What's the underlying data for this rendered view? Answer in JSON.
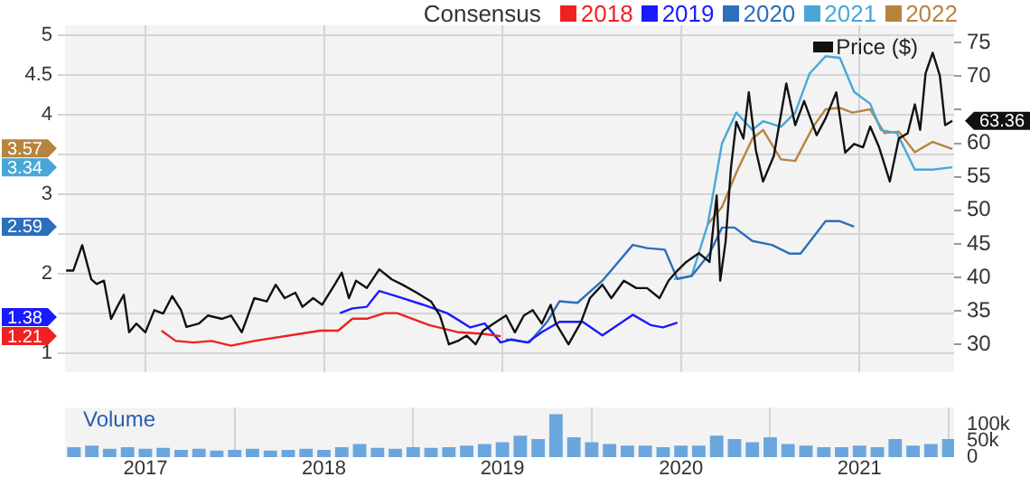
{
  "chart_data": [
    {
      "type": "line",
      "legend": "top right",
      "legend_title": "Consensus",
      "grid": true,
      "tick_labels": "y",
      "xlim": [
        2016.55,
        2021.53
      ],
      "xticks": [
        2017,
        2018,
        2019,
        2020,
        2021
      ],
      "ylim": [
        0.76,
        5.13
      ],
      "yticks": [
        1,
        {
          "value": 1.5,
          "label": null
        },
        2,
        {
          "value": 2.5,
          "label": null
        },
        3,
        {
          "value": 3.5,
          "label": null
        },
        4,
        4.5,
        5
      ],
      "annotations": [
        "1.21",
        "1.38",
        "2.59",
        "3.34",
        "3.57"
      ],
      "y2lim": [
        25.9,
        77.6
      ],
      "y2ticks": [
        30,
        35,
        40,
        45,
        50,
        55,
        60,
        {
          "value": 65,
          "label": null
        },
        70,
        75
      ],
      "series": [
        {
          "name": "2018",
          "color": "#ee2222",
          "x": [
            2017.09,
            2017.17,
            2017.27,
            2017.37,
            2017.48,
            2017.61,
            2017.81,
            2017.98,
            2018.08,
            2018.16,
            2018.24,
            2018.34,
            2018.41,
            2018.59,
            2018.75,
            2018.89,
            2018.99
          ],
          "values": [
            1.28,
            1.15,
            1.13,
            1.15,
            1.09,
            1.15,
            1.22,
            1.28,
            1.28,
            1.43,
            1.43,
            1.5,
            1.5,
            1.35,
            1.26,
            1.24,
            1.21
          ]
        },
        {
          "name": "2019",
          "color": "#1a1aff",
          "x": [
            2018.09,
            2018.16,
            2018.24,
            2018.31,
            2018.41,
            2018.55,
            2018.69,
            2018.82,
            2018.9,
            2018.99,
            2019.05,
            2019.14,
            2019.22,
            2019.32,
            2019.45,
            2019.56,
            2019.73,
            2019.83,
            2019.9,
            2019.98
          ],
          "values": [
            1.5,
            1.56,
            1.58,
            1.78,
            1.71,
            1.61,
            1.5,
            1.32,
            1.37,
            1.13,
            1.17,
            1.13,
            1.26,
            1.39,
            1.39,
            1.22,
            1.48,
            1.35,
            1.32,
            1.38
          ]
        },
        {
          "name": "2020",
          "color": "#2c6fbb",
          "x": [
            2019.02,
            2019.15,
            2019.25,
            2019.32,
            2019.42,
            2019.56,
            2019.73,
            2019.81,
            2019.91,
            2019.98,
            2020.06,
            2020.16,
            2020.23,
            2020.3,
            2020.4,
            2020.51,
            2020.61,
            2020.67,
            2020.81,
            2020.89,
            2020.97
          ],
          "values": [
            1.17,
            1.13,
            1.39,
            1.65,
            1.63,
            1.91,
            2.36,
            2.32,
            2.3,
            1.93,
            1.97,
            2.25,
            2.58,
            2.58,
            2.41,
            2.36,
            2.25,
            2.25,
            2.66,
            2.66,
            2.59
          ]
        },
        {
          "name": "2021",
          "color": "#47a8d8",
          "x": [
            2019.96,
            2020.06,
            2020.15,
            2020.23,
            2020.31,
            2020.4,
            2020.46,
            2020.56,
            2020.64,
            2020.72,
            2020.81,
            2020.89,
            2020.97,
            2021.06,
            2021.12,
            2021.21,
            2021.31,
            2021.41,
            2021.52
          ],
          "values": [
            1.93,
            1.97,
            2.62,
            3.64,
            4.03,
            3.81,
            3.92,
            3.85,
            4.03,
            4.52,
            4.74,
            4.72,
            4.29,
            4.14,
            3.81,
            3.77,
            3.31,
            3.31,
            3.34
          ]
        },
        {
          "name": "2022",
          "color": "#b7843f",
          "x": [
            2020.15,
            2020.23,
            2020.31,
            2020.4,
            2020.46,
            2020.56,
            2020.64,
            2020.74,
            2020.81,
            2020.89,
            2020.96,
            2021.06,
            2021.14,
            2021.22,
            2021.31,
            2021.41,
            2021.52
          ],
          "values": [
            2.62,
            2.84,
            3.27,
            3.7,
            3.81,
            3.44,
            3.42,
            3.85,
            4.07,
            4.09,
            4.03,
            4.07,
            3.77,
            3.79,
            3.53,
            3.66,
            3.57
          ]
        },
        {
          "name": "Price ($)",
          "color": "#111111",
          "axis": "y2",
          "x": [
            2016.556,
            2016.596,
            2016.646,
            2016.697,
            2016.727,
            2016.768,
            2016.808,
            2016.848,
            2016.879,
            2016.909,
            2016.949,
            2017.0,
            2017.05,
            2017.1,
            2017.15,
            2017.2,
            2017.23,
            2017.3,
            2017.35,
            2017.43,
            2017.48,
            2017.54,
            2017.61,
            2017.68,
            2017.73,
            2017.78,
            2017.84,
            2017.88,
            2017.94,
            2017.99,
            2018.06,
            2018.1,
            2018.14,
            2018.18,
            2018.24,
            2018.31,
            2018.38,
            2018.44,
            2018.52,
            2018.6,
            2018.65,
            2018.7,
            2018.75,
            2018.8,
            2018.85,
            2018.89,
            2018.95,
            2019.02,
            2019.07,
            2019.12,
            2019.17,
            2019.22,
            2019.27,
            2019.3,
            2019.37,
            2019.44,
            2019.49,
            2019.56,
            2019.61,
            2019.68,
            2019.75,
            2019.81,
            2019.88,
            2019.93,
            2019.98,
            2020.03,
            2020.1,
            2020.16,
            2020.2,
            2020.22,
            2020.25,
            2020.28,
            2020.31,
            2020.35,
            2020.38,
            2020.42,
            2020.46,
            2020.52,
            2020.59,
            2020.64,
            2020.69,
            2020.76,
            2020.81,
            2020.87,
            2020.92,
            2020.97,
            2021.02,
            2021.06,
            2021.11,
            2021.17,
            2021.22,
            2021.27,
            2021.31,
            2021.34,
            2021.37,
            2021.41,
            2021.45,
            2021.48,
            2021.52
          ],
          "values": [
            41.0,
            41.0,
            44.8,
            39.7,
            39.0,
            39.5,
            33.8,
            35.9,
            37.4,
            31.8,
            33.1,
            31.8,
            35.1,
            34.6,
            37.2,
            35.1,
            32.6,
            33.1,
            34.3,
            33.8,
            34.3,
            31.8,
            36.9,
            36.4,
            38.9,
            36.9,
            37.7,
            35.6,
            36.9,
            35.9,
            38.9,
            40.7,
            36.9,
            39.5,
            38.4,
            41.2,
            39.7,
            38.9,
            37.7,
            36.4,
            34.3,
            30.0,
            30.5,
            31.3,
            30.0,
            32.0,
            33.1,
            34.3,
            31.8,
            34.3,
            35.1,
            33.1,
            35.9,
            33.1,
            30.0,
            33.3,
            36.9,
            38.9,
            36.9,
            39.5,
            38.4,
            38.4,
            36.9,
            39.5,
            41.0,
            42.3,
            43.6,
            42.3,
            52.2,
            39.5,
            45.3,
            56.3,
            63.2,
            60.7,
            67.6,
            58.9,
            54.3,
            58.1,
            68.9,
            62.7,
            66.3,
            61.2,
            63.7,
            67.6,
            58.6,
            59.9,
            59.4,
            62.5,
            59.4,
            54.3,
            60.7,
            61.5,
            65.8,
            62.0,
            70.4,
            73.5,
            70.1,
            62.7,
            63.36
          ],
          "value_labels": [
            null,
            null,
            null,
            null,
            null,
            null,
            null,
            null,
            null,
            null,
            null,
            null,
            null,
            null,
            null,
            null,
            null,
            null,
            null,
            null,
            null,
            null,
            null,
            null,
            null,
            null,
            null,
            null,
            null,
            null,
            null,
            null,
            null,
            null,
            null,
            null,
            null,
            null,
            null,
            null,
            null,
            null,
            null,
            null,
            null,
            null,
            null,
            null,
            null,
            null,
            null,
            null,
            null,
            null,
            null,
            null,
            null,
            null,
            null,
            null,
            null,
            null,
            null,
            null,
            null,
            null,
            null,
            null,
            null,
            null,
            null,
            null,
            null,
            null,
            null,
            null,
            null,
            null,
            null,
            null,
            null,
            null,
            null,
            null,
            null,
            null,
            null,
            null,
            null,
            null,
            null,
            null,
            null,
            null,
            null,
            null,
            null,
            null,
            "63.36"
          ]
        }
      ]
    },
    {
      "type": "bar",
      "title": "Volume",
      "grid": "x",
      "color": "#6aa6dd",
      "xlim": [
        2016.55,
        2021.53
      ],
      "xticks": [
        2017,
        2018,
        2019,
        2020,
        2021
      ],
      "ylim": [
        0,
        150000
      ],
      "yticks": [
        0,
        {
          "value": 50000,
          "label": "50k"
        },
        {
          "value": 100000,
          "label": "100k"
        }
      ],
      "x": [
        2016.6,
        2016.7,
        2016.8,
        2016.9,
        2017.0,
        2017.1,
        2017.2,
        2017.3,
        2017.4,
        2017.5,
        2017.6,
        2017.7,
        2017.8,
        2017.9,
        2018.0,
        2018.1,
        2018.2,
        2018.3,
        2018.4,
        2018.5,
        2018.6,
        2018.7,
        2018.8,
        2018.9,
        2019.0,
        2019.1,
        2019.2,
        2019.3,
        2019.4,
        2019.5,
        2019.6,
        2019.7,
        2019.8,
        2019.9,
        2020.0,
        2020.1,
        2020.2,
        2020.3,
        2020.4,
        2020.5,
        2020.6,
        2020.7,
        2020.8,
        2020.9,
        2021.0,
        2021.1,
        2021.2,
        2021.3,
        2021.4,
        2021.5
      ],
      "values": [
        30000,
        35000,
        25000,
        30000,
        25000,
        28000,
        22000,
        25000,
        20000,
        22000,
        25000,
        20000,
        22000,
        25000,
        22000,
        30000,
        40000,
        28000,
        25000,
        30000,
        28000,
        30000,
        35000,
        40000,
        45000,
        65000,
        55000,
        130000,
        60000,
        45000,
        40000,
        35000,
        35000,
        30000,
        35000,
        35000,
        65000,
        55000,
        45000,
        60000,
        40000,
        35000,
        30000,
        30000,
        35000,
        30000,
        55000,
        35000,
        40000,
        55000
      ]
    }
  ]
}
